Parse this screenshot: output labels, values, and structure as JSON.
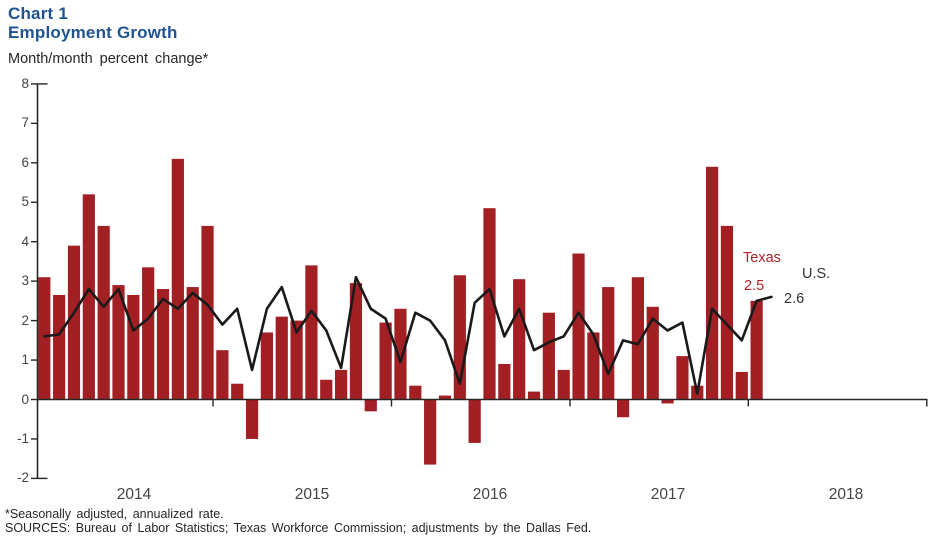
{
  "header": {
    "chart_label": "Chart 1",
    "title": "Employment Growth",
    "subtitle": "Month/month percent change*"
  },
  "annotations": {
    "texas_label": "Texas",
    "texas_value": "2.5",
    "us_label": "U.S.",
    "us_value": "2.6"
  },
  "footnotes": {
    "line1": "*Seasonally adjusted, annualized rate.",
    "line2": "SOURCES: Bureau of Labor Statistics; Texas Workforce Commission; adjustments by the Dallas Fed."
  },
  "colors": {
    "bar": "#a21f24",
    "accent_text": "#b22227",
    "line": "#1a1a1a",
    "axis": "#262626",
    "title": "#1f5391",
    "tick_text": "#444444"
  },
  "chart_data": {
    "type": "bar",
    "subtype": "bar-plus-line-combo",
    "title": "Employment Growth",
    "subtitle": "Month/month percent change*",
    "x_unit": "month",
    "x_start": "2014-01",
    "year_tick_labels": [
      "2014",
      "2015",
      "2016",
      "2017",
      "2018"
    ],
    "y_ticks": [
      8,
      7,
      6,
      5,
      4,
      3,
      2,
      1,
      0,
      -1,
      -2
    ],
    "ylim": [
      -2,
      8
    ],
    "grid": false,
    "legend_position": "end-of-series labels",
    "series": [
      {
        "name": "Texas",
        "type": "bar",
        "latest_label": "2.5",
        "values": [
          3.1,
          2.65,
          3.9,
          5.2,
          4.4,
          2.9,
          2.65,
          3.35,
          2.8,
          6.1,
          2.85,
          4.4,
          1.25,
          0.4,
          -1.0,
          1.7,
          2.1,
          2.0,
          3.4,
          0.5,
          0.75,
          2.95,
          -0.3,
          1.95,
          2.3,
          0.35,
          -1.65,
          0.1,
          3.15,
          -1.1,
          4.85,
          0.9,
          3.05,
          0.2,
          2.2,
          0.75,
          3.7,
          1.7,
          2.85,
          -0.45,
          3.1,
          2.35,
          -0.1,
          1.1,
          0.35,
          5.9,
          4.4,
          0.7,
          2.5
        ]
      },
      {
        "name": "U.S.",
        "type": "line",
        "latest_label": "2.6",
        "values": [
          1.6,
          1.65,
          2.2,
          2.8,
          2.35,
          2.8,
          1.75,
          2.05,
          2.55,
          2.3,
          2.7,
          2.4,
          1.9,
          2.3,
          0.75,
          2.3,
          2.85,
          1.7,
          2.25,
          1.75,
          0.8,
          3.1,
          2.3,
          2.05,
          0.95,
          2.2,
          2.0,
          1.5,
          0.4,
          2.45,
          2.8,
          1.6,
          2.3,
          1.25,
          1.45,
          1.6,
          2.2,
          1.65,
          0.65,
          1.5,
          1.4,
          2.05,
          1.75,
          1.95,
          0.15,
          2.3,
          1.9,
          1.5,
          2.5,
          2.6
        ]
      }
    ]
  }
}
